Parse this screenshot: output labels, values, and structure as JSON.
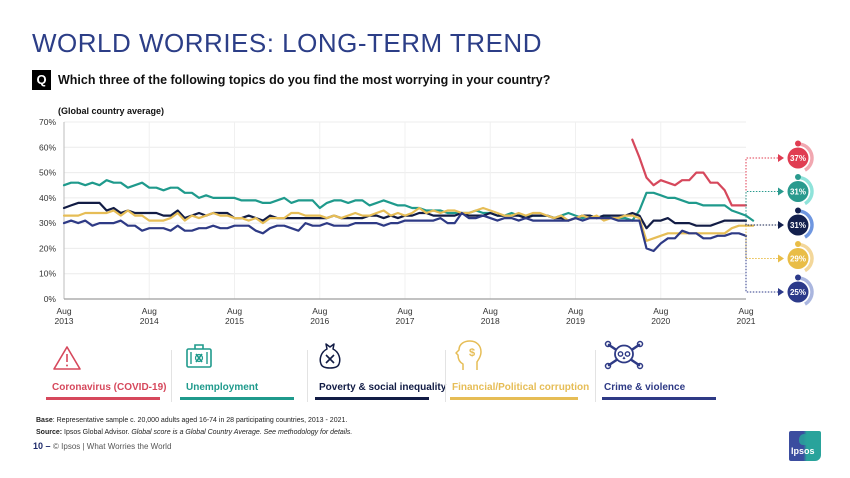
{
  "header": {
    "title": "WORLD WORRIES: LONG-TERM TREND",
    "q_badge": "Q",
    "question": "Which three of the following topics do you find the most worrying in your country?",
    "subtitle": "(Global country average)"
  },
  "chart_data": {
    "type": "line",
    "title": "World Worries: Long-term trend",
    "subtitle": "(Global country average)",
    "xlabel": "",
    "ylabel": "",
    "ylim": [
      0,
      70
    ],
    "yticks": [
      "0%",
      "10%",
      "20%",
      "30%",
      "40%",
      "50%",
      "60%",
      "70%"
    ],
    "ytick_values": [
      0,
      10,
      20,
      30,
      40,
      50,
      60,
      70
    ],
    "xticks": [
      {
        "month_index": 0,
        "line1": "Aug",
        "line2": "2013"
      },
      {
        "month_index": 12,
        "line1": "Aug",
        "line2": "2014"
      },
      {
        "month_index": 24,
        "line1": "Aug",
        "line2": "2015"
      },
      {
        "month_index": 36,
        "line1": "Aug",
        "line2": "2016"
      },
      {
        "month_index": 48,
        "line1": "Aug",
        "line2": "2017"
      },
      {
        "month_index": 60,
        "line1": "Aug",
        "line2": "2018"
      },
      {
        "month_index": 72,
        "line1": "Aug",
        "line2": "2019"
      },
      {
        "month_index": 84,
        "line1": "Aug",
        "line2": "2020"
      },
      {
        "month_index": 96,
        "line1": "Aug",
        "line2": "2021"
      }
    ],
    "xlim": [
      0,
      96
    ],
    "grid": true,
    "x_unit": "months since Aug 2013",
    "series": [
      {
        "name": "Unemployment",
        "color": "#1f9a8c",
        "start": 0,
        "values": [
          45,
          46,
          46,
          45,
          46,
          45,
          47,
          46,
          46,
          44,
          45,
          46,
          44,
          44,
          43,
          44,
          44,
          42,
          42,
          40,
          41,
          40,
          40,
          40,
          40,
          39,
          39,
          39,
          38,
          38,
          39,
          40,
          38,
          39,
          39,
          39,
          36,
          38,
          39,
          39,
          38,
          39,
          39,
          37,
          38,
          39,
          38,
          37,
          37,
          36,
          36,
          35,
          35,
          35,
          34,
          34,
          34,
          34,
          35,
          34,
          34,
          33,
          33,
          34,
          33,
          33,
          33,
          33,
          33,
          32,
          33,
          34,
          33,
          32,
          33,
          32,
          33,
          32,
          32,
          32,
          31,
          35,
          42,
          42,
          41,
          40,
          40,
          39,
          38,
          38,
          37,
          37,
          37,
          37,
          35,
          34,
          33,
          31
        ]
      },
      {
        "name": "Poverty & social inequality",
        "color": "#121c45",
        "start": 0,
        "values": [
          36,
          37,
          38,
          38,
          38,
          38,
          35,
          36,
          34,
          35,
          34,
          34,
          34,
          34,
          33,
          33,
          35,
          32,
          33,
          34,
          33,
          34,
          34,
          34,
          32,
          32,
          33,
          32,
          31,
          33,
          32,
          32,
          32,
          32,
          32,
          32,
          32,
          32,
          33,
          32,
          32,
          32,
          32,
          33,
          33,
          32,
          33,
          32,
          33,
          33,
          34,
          34,
          33,
          33,
          33,
          33,
          34,
          33,
          33,
          33,
          34,
          33,
          33,
          33,
          33,
          32,
          33,
          33,
          33,
          32,
          32,
          31,
          32,
          33,
          33,
          32,
          33,
          33,
          33,
          33,
          34,
          33,
          28,
          31,
          31,
          32,
          30,
          30,
          30,
          29,
          29,
          29,
          30,
          31,
          31,
          31,
          31
        ]
      },
      {
        "name": "Financial/Political corruption",
        "color": "#e6bd56",
        "start": 0,
        "values": [
          33,
          33,
          33,
          34,
          34,
          34,
          34,
          35,
          33,
          35,
          33,
          33,
          31,
          31,
          31,
          32,
          34,
          31,
          33,
          32,
          33,
          34,
          33,
          33,
          32,
          32,
          31,
          32,
          30,
          32,
          32,
          32,
          34,
          34,
          33,
          33,
          33,
          32,
          33,
          32,
          33,
          34,
          33,
          33,
          34,
          35,
          33,
          34,
          33,
          34,
          36,
          34,
          35,
          34,
          35,
          35,
          34,
          34,
          35,
          36,
          35,
          34,
          33,
          33,
          34,
          33,
          34,
          34,
          33,
          32,
          33,
          31,
          32,
          33,
          32,
          33,
          31,
          32,
          32,
          33,
          33,
          32,
          23,
          24,
          25,
          26,
          26,
          26,
          26,
          26,
          26,
          26,
          26,
          26,
          28,
          29,
          29,
          29
        ]
      },
      {
        "name": "Crime & violence",
        "color": "#2e3a85",
        "start": 0,
        "values": [
          30,
          31,
          30,
          31,
          29,
          30,
          30,
          30,
          31,
          29,
          29,
          27,
          28,
          28,
          28,
          27,
          29,
          27,
          27,
          28,
          28,
          29,
          28,
          28,
          29,
          29,
          29,
          27,
          26,
          28,
          29,
          29,
          28,
          27,
          30,
          29,
          29,
          30,
          29,
          29,
          29,
          30,
          30,
          30,
          30,
          29,
          30,
          30,
          31,
          31,
          31,
          31,
          31,
          32,
          30,
          30,
          34,
          32,
          32,
          33,
          32,
          31,
          32,
          32,
          31,
          32,
          31,
          31,
          31,
          31,
          31,
          31,
          32,
          31,
          32,
          32,
          32,
          32,
          31,
          31,
          31,
          31,
          20,
          19,
          22,
          24,
          24,
          27,
          26,
          26,
          24,
          24,
          25,
          25,
          26,
          26,
          25
        ]
      },
      {
        "name": "Coronavirus (COVID-19)",
        "color": "#d6485c",
        "start": 80,
        "values": [
          63,
          56,
          48,
          45,
          47,
          46,
          45,
          47,
          47,
          50,
          50,
          46,
          46,
          43,
          37,
          37,
          37
        ]
      }
    ],
    "end_labels": [
      {
        "series": "Coronavirus (COVID-19)",
        "value": 37,
        "label": "37%",
        "color": "#e03d52",
        "ring_color": "#f1a7b0"
      },
      {
        "series": "Unemployment",
        "value": 31,
        "label": "31%",
        "color": "#2a9a8e",
        "ring_color": "#8fe3da"
      },
      {
        "series": "Poverty & social inequality",
        "value": 31,
        "label": "31%",
        "color": "#13204d",
        "ring_color": "#6f97e0"
      },
      {
        "series": "Financial/Political corruption",
        "value": 29,
        "label": "29%",
        "color": "#e9bd47",
        "ring_color": "#f3d79a"
      },
      {
        "series": "Crime & violence",
        "value": 25,
        "label": "25%",
        "color": "#2c3a8a",
        "ring_color": "#aab6df"
      }
    ]
  },
  "legend": [
    {
      "label": "Coronavirus (COVID-19)",
      "icon": "warning-triangle-icon",
      "color": "#d6485c"
    },
    {
      "label": "Unemployment",
      "icon": "briefcase-icon",
      "color": "#1f9a8c"
    },
    {
      "label": "Poverty & social inequality",
      "icon": "money-bag-icon",
      "color": "#121c45"
    },
    {
      "label": "Financial/Political corruption",
      "icon": "head-dollar-icon",
      "color": "#e6bd56"
    },
    {
      "label": "Crime & violence",
      "icon": "skull-crossbones-icon",
      "color": "#2e3a85"
    }
  ],
  "footer": {
    "base_label": "Base",
    "base_text": ": Representative sample c. 20,000 adults aged 16-74 in 28 participating countries, 2013 - 2021.",
    "source_label": "Source:",
    "source_text": " Ipsos Global Advisor. ",
    "source_italic": "Global score is a Global Country Average. See methodology for details.",
    "page_number": "10",
    "page_dash": " – ",
    "copyright": "© Ipsos | What Worries the World",
    "logo_text": "Ipsos"
  }
}
